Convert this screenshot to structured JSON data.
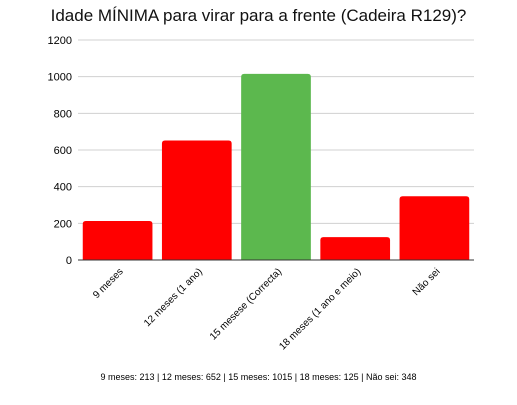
{
  "chart_data": {
    "type": "bar",
    "title": "Idade MÍNIMA para virar para a frente (Cadeira R129)?",
    "categories": [
      "9 meses",
      "12 meses (1 ano)",
      "15 mesese (Correcta)",
      "18 meses (1 ano e meio)",
      "Não sei"
    ],
    "values": [
      213,
      652,
      1015,
      125,
      348
    ],
    "bar_colors": [
      "#ff0000",
      "#ff0000",
      "#5cb84e",
      "#ff0000",
      "#ff0000"
    ],
    "ylim": [
      0,
      1200
    ],
    "yticks": [
      0,
      200,
      400,
      600,
      800,
      1000,
      1200
    ],
    "xlabel": "",
    "ylabel": "",
    "grid": true,
    "legend": "none"
  },
  "footer": {
    "summary": "9 meses: 213 | 12 meses: 652 | 15 meses: 1015 | 18 meses: 125 | Não sei: 348"
  }
}
